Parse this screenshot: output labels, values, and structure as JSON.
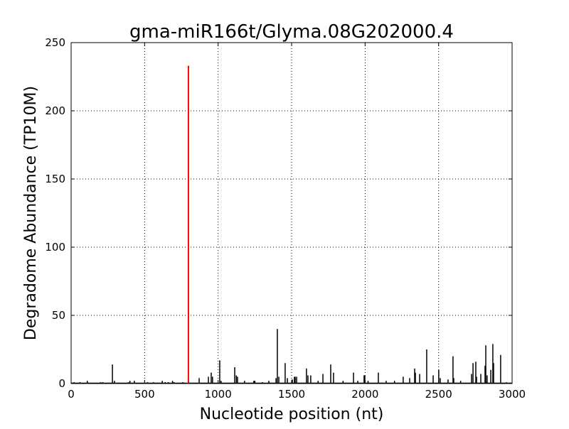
{
  "chart_data": {
    "type": "bar",
    "title": "gma-miR166t/Glyma.08G202000.4",
    "xlabel": "Nucleotide position (nt)",
    "ylabel": "Degradome Abundance (TP10M)",
    "xlim": [
      0,
      3000
    ],
    "ylim": [
      0,
      250
    ],
    "xticks": [
      "0",
      "500",
      "1000",
      "1500",
      "2000",
      "2500",
      "3000"
    ],
    "yticks": [
      "0",
      "50",
      "100",
      "150",
      "200",
      "250"
    ],
    "grid": true,
    "colors": {
      "background": "#ffffff",
      "bars": "#000000",
      "highlight": "#ff0000"
    },
    "highlight": {
      "x": 798,
      "y": 233
    },
    "series": [
      {
        "x": [
          20,
          60,
          110,
          200,
          215,
          281,
          295,
          390,
          400,
          430,
          520,
          560,
          620,
          640,
          660,
          690,
          700,
          760,
          800,
          871,
          934,
          953,
          962,
          1011,
          1020,
          1113,
          1124,
          1132,
          1180,
          1243,
          1250,
          1300,
          1345,
          1394,
          1403,
          1413,
          1456,
          1471,
          1505,
          1519,
          1524,
          1534,
          1601,
          1611,
          1630,
          1680,
          1713,
          1766,
          1785,
          1850,
          1921,
          1950,
          1993,
          1998,
          2020,
          2090,
          2143,
          2200,
          2259,
          2303,
          2337,
          2342,
          2371,
          2419,
          2463,
          2501,
          2511,
          2564,
          2598,
          2603,
          2650,
          2724,
          2734,
          2753,
          2758,
          2787,
          2816,
          2821,
          2830,
          2855,
          2869,
          2874,
          2922,
          2961
        ],
        "y": [
          1,
          1,
          2,
          1,
          1,
          14,
          2,
          1,
          2,
          2,
          1,
          1,
          2,
          1,
          1,
          2,
          1,
          1,
          1,
          4,
          5,
          8,
          5,
          17,
          2,
          12,
          6,
          5,
          2,
          2,
          2,
          1,
          2,
          4,
          40,
          5,
          15,
          4,
          3,
          5,
          5,
          5,
          11,
          6,
          6,
          2,
          7,
          14,
          8,
          2,
          8,
          2,
          6,
          6,
          2,
          8,
          2,
          2,
          5,
          4,
          11,
          8,
          7,
          25,
          6,
          10,
          4,
          3,
          20,
          4,
          2,
          7,
          15,
          16,
          5,
          7,
          13,
          28,
          6,
          10,
          29,
          15,
          21,
          1
        ]
      }
    ]
  }
}
